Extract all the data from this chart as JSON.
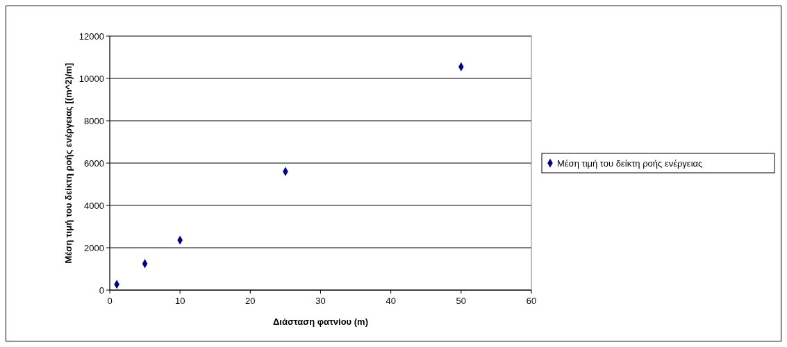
{
  "chart_data": {
    "type": "scatter",
    "xlabel": "Διάσταση φατνίου (m)",
    "ylabel": "Μέση τιμή του δείκτη ροής ενέργειας [(m^2)/m]",
    "x": [
      1,
      5,
      10,
      25,
      50
    ],
    "series": [
      {
        "name": "Μέση τιμή του δείκτη ροής ενέργειας",
        "color": "#000080",
        "values": [
          270,
          1250,
          2360,
          5600,
          10550
        ]
      }
    ],
    "xlim": [
      0,
      60
    ],
    "xticks": [
      0,
      10,
      20,
      30,
      40,
      50,
      60
    ],
    "ylim": [
      0,
      12000
    ],
    "yticks": [
      0,
      2000,
      4000,
      6000,
      8000,
      10000,
      12000
    ],
    "grid": "y",
    "legend": "right",
    "marker": "diamond"
  }
}
